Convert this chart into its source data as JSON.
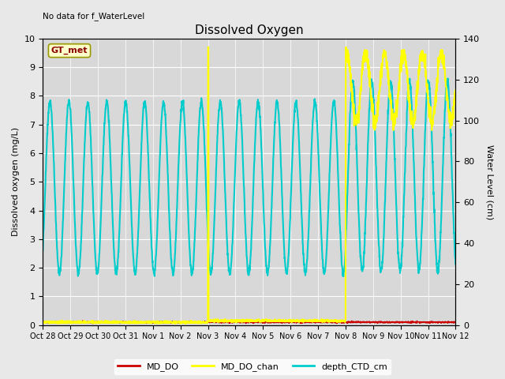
{
  "title": "Dissolved Oxygen",
  "ylabel_left": "Dissolved oxygen (mg/L)",
  "ylabel_right": "Water Level (cm)",
  "ylim_left": [
    0,
    10
  ],
  "ylim_right": [
    0,
    140
  ],
  "no_data_text": "No data for f_WaterLevel",
  "gt_met_label": "GT_met",
  "background_color": "#e8e8e8",
  "plot_bg_color": "#d8d8d8",
  "tick_labels": [
    "Oct 28",
    "Oct 29",
    "Oct 30",
    "Oct 31",
    "Nov 1",
    "Nov 2",
    "Nov 3",
    "Nov 4",
    "Nov 5",
    "Nov 6",
    "Nov 7",
    "Nov 8",
    "Nov 9",
    "Nov 10",
    "Nov 11",
    "Nov 12"
  ],
  "line_colors": {
    "MD_DO": "#cc0000",
    "MD_DO_chan": "#ffff00",
    "depth_CTD_cm": "#00cccc"
  },
  "line_widths": {
    "MD_DO": 1.0,
    "MD_DO_chan": 1.5,
    "depth_CTD_cm": 1.5
  },
  "figsize": [
    6.4,
    4.8
  ],
  "dpi": 100
}
